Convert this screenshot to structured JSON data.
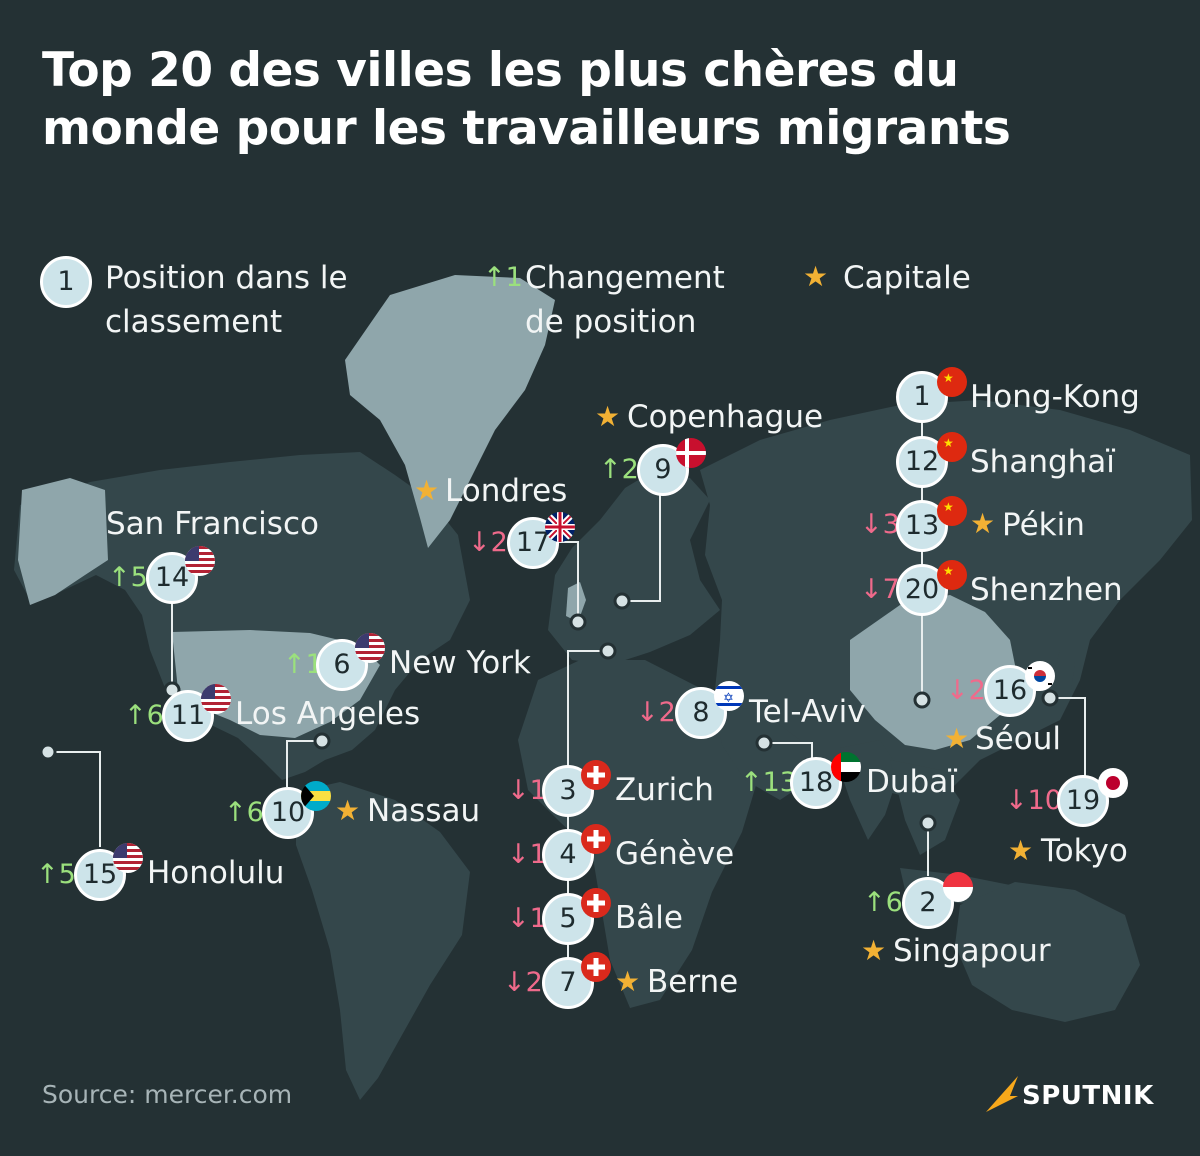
{
  "title": "Top 20 des villes les plus chères du monde pour les travailleurs migrants",
  "legend": {
    "position_number": "1",
    "position_label": "Position dans le classement",
    "change_sample": "↑1",
    "change_label": "Changement de position",
    "capital_label": "Capitale"
  },
  "cities": [
    {
      "id": "hong-kong",
      "rank": "1",
      "name": "Hong-Kong",
      "change": "",
      "capital": false,
      "flag": "china"
    },
    {
      "id": "singapour",
      "rank": "2",
      "name": "Singapour",
      "change": "↑6",
      "capital": true,
      "flag": "singapore"
    },
    {
      "id": "zurich",
      "rank": "3",
      "name": "Zurich",
      "change": "↓1",
      "capital": false,
      "flag": "switzerland"
    },
    {
      "id": "geneve",
      "rank": "4",
      "name": "Génève",
      "change": "↓1",
      "capital": false,
      "flag": "switzerland"
    },
    {
      "id": "bale",
      "rank": "5",
      "name": "Bâle",
      "change": "↓1",
      "capital": false,
      "flag": "switzerland"
    },
    {
      "id": "new-york",
      "rank": "6",
      "name": "New York",
      "change": "↑1",
      "capital": false,
      "flag": "usa"
    },
    {
      "id": "berne",
      "rank": "7",
      "name": "Berne",
      "change": "↓2",
      "capital": true,
      "flag": "switzerland"
    },
    {
      "id": "tel-aviv",
      "rank": "8",
      "name": "Tel-Aviv",
      "change": "↓2",
      "capital": false,
      "flag": "israel"
    },
    {
      "id": "copenhague",
      "rank": "9",
      "name": "Copenhague",
      "change": "↑2",
      "capital": true,
      "flag": "denmark"
    },
    {
      "id": "nassau",
      "rank": "10",
      "name": "Nassau",
      "change": "↑6",
      "capital": true,
      "flag": "bahamas"
    },
    {
      "id": "los-angeles",
      "rank": "11",
      "name": "Los Angeles",
      "change": "↑6",
      "capital": false,
      "flag": "usa"
    },
    {
      "id": "shanghai",
      "rank": "12",
      "name": "Shanghaï",
      "change": "",
      "capital": false,
      "flag": "china"
    },
    {
      "id": "pekin",
      "rank": "13",
      "name": "Pékin",
      "change": "↓3",
      "capital": true,
      "flag": "china"
    },
    {
      "id": "san-francisco",
      "rank": "14",
      "name": "San Francisco",
      "change": "↑5",
      "capital": false,
      "flag": "usa"
    },
    {
      "id": "honolulu",
      "rank": "15",
      "name": "Honolulu",
      "change": "↑5",
      "capital": false,
      "flag": "usa"
    },
    {
      "id": "seoul",
      "rank": "16",
      "name": "Séoul",
      "change": "↓2",
      "capital": true,
      "flag": "south-korea"
    },
    {
      "id": "londres",
      "rank": "17",
      "name": "Londres",
      "change": "↓2",
      "capital": true,
      "flag": "uk"
    },
    {
      "id": "dubai",
      "rank": "18",
      "name": "Dubaï",
      "change": "↑13",
      "capital": false,
      "flag": "uae"
    },
    {
      "id": "tokyo",
      "rank": "19",
      "name": "Tokyo",
      "change": "↓10",
      "capital": true,
      "flag": "japan"
    },
    {
      "id": "shenzhen",
      "rank": "20",
      "name": "Shenzhen",
      "change": "↓7",
      "capital": false,
      "flag": "china"
    }
  ],
  "source": "Source: mercer.com",
  "brand": "SPUTNIK",
  "colors": {
    "background": "#243134",
    "land": "#34474b",
    "highlight_land": "#8fa6ab",
    "circle": "#cde4ea",
    "up": "#9be07d",
    "down": "#ef6a8b",
    "star": "#f2b134",
    "brand": "#f7a81b"
  }
}
